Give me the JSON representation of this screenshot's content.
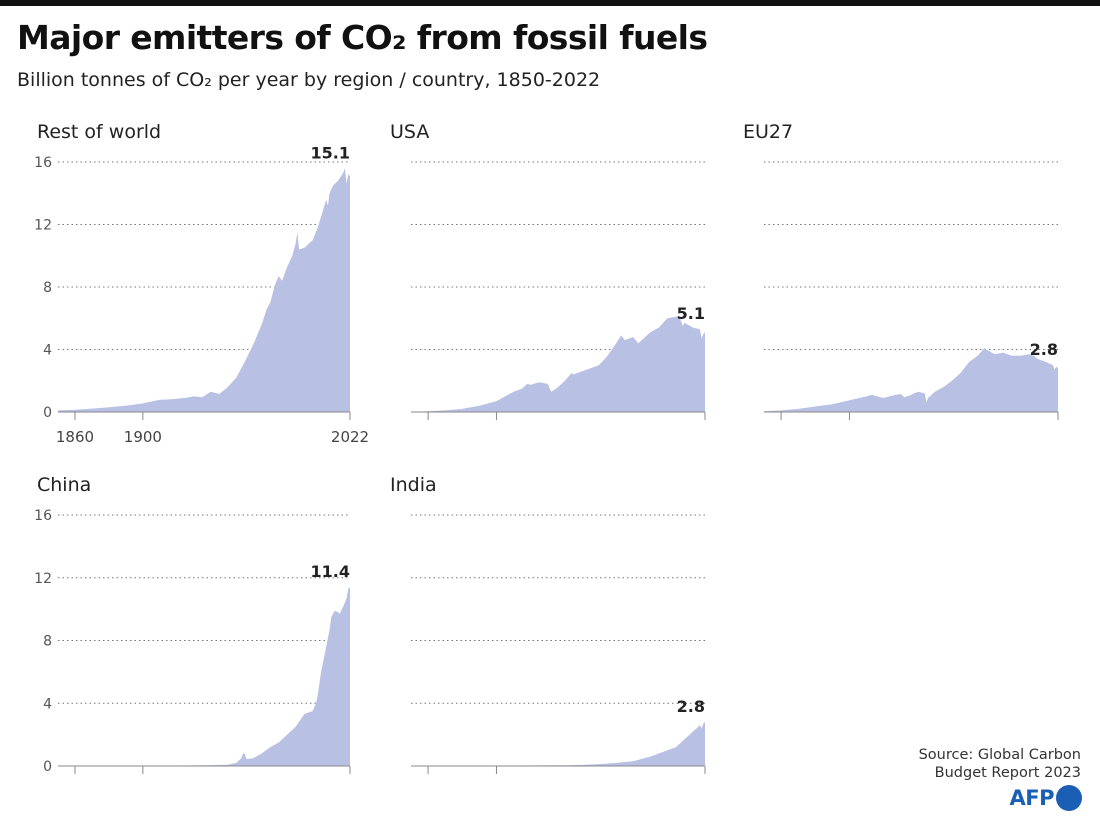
{
  "title": "Major emitters of CO₂ from fossil fuels",
  "subtitle": "Billion tonnes of CO₂ per year by region / country, 1850-2022",
  "source_line1": "Source: Global Carbon",
  "source_line2": "Budget Report 2023",
  "logo": "AFP",
  "colors": {
    "area": "#b8c0e3",
    "text": "#1a1a1a",
    "logo": "#1a5fb4"
  },
  "chart_data": [
    {
      "type": "area",
      "title": "Rest of world",
      "x": [
        1850,
        1860,
        1870,
        1880,
        1890,
        1900,
        1910,
        1915,
        1920,
        1925,
        1930,
        1935,
        1940,
        1945,
        1950,
        1955,
        1960,
        1965,
        1970,
        1973,
        1975,
        1978,
        1980,
        1982,
        1985,
        1988,
        1990,
        1991,
        1992,
        1995,
        2000,
        2003,
        2005,
        2008,
        2009,
        2010,
        2012,
        2015,
        2018,
        2019,
        2020,
        2021,
        2022
      ],
      "values": [
        0.1,
        0.15,
        0.22,
        0.3,
        0.4,
        0.55,
        0.78,
        0.8,
        0.85,
        0.9,
        1.0,
        0.95,
        1.3,
        1.15,
        1.6,
        2.2,
        3.2,
        4.3,
        5.6,
        6.6,
        7.0,
        8.2,
        8.7,
        8.4,
        9.3,
        10.0,
        10.8,
        11.5,
        10.4,
        10.5,
        11.0,
        11.8,
        12.5,
        13.6,
        13.2,
        14.0,
        14.5,
        14.8,
        15.3,
        15.6,
        14.6,
        15.2,
        15.1
      ],
      "label_value": "15.1",
      "y_ticks": [
        "16",
        "12",
        "8",
        "4",
        "0"
      ],
      "x_tick_labels": [
        "1860",
        "1900",
        "2022"
      ],
      "ylim": [
        0,
        16
      ]
    },
    {
      "type": "area",
      "title": "USA",
      "x": [
        1850,
        1860,
        1870,
        1880,
        1890,
        1900,
        1905,
        1910,
        1915,
        1918,
        1920,
        1925,
        1930,
        1932,
        1935,
        1940,
        1944,
        1945,
        1950,
        1955,
        1960,
        1965,
        1970,
        1973,
        1975,
        1980,
        1983,
        1985,
        1990,
        1995,
        2000,
        2005,
        2007,
        2009,
        2010,
        2015,
        2019,
        2020,
        2021,
        2022
      ],
      "values": [
        0.01,
        0.05,
        0.1,
        0.2,
        0.4,
        0.7,
        1.0,
        1.3,
        1.5,
        1.8,
        1.75,
        1.9,
        1.8,
        1.3,
        1.5,
        2.0,
        2.5,
        2.4,
        2.6,
        2.8,
        3.0,
        3.6,
        4.4,
        4.9,
        4.6,
        4.8,
        4.4,
        4.6,
        5.1,
        5.4,
        6.0,
        6.1,
        6.1,
        5.5,
        5.7,
        5.4,
        5.3,
        4.7,
        5.0,
        5.1
      ],
      "label_value": "5.1",
      "y_ticks": [
        "16",
        "12",
        "8",
        "4",
        "0"
      ],
      "x_tick_labels": [],
      "ylim": [
        0,
        16
      ]
    },
    {
      "type": "area",
      "title": "EU27",
      "x": [
        1850,
        1860,
        1870,
        1880,
        1890,
        1900,
        1910,
        1913,
        1918,
        1920,
        1925,
        1930,
        1932,
        1935,
        1940,
        1944,
        1945,
        1946,
        1950,
        1955,
        1960,
        1965,
        1970,
        1975,
        1979,
        1980,
        1985,
        1990,
        1995,
        2000,
        2005,
        2008,
        2010,
        2015,
        2019,
        2020,
        2021,
        2022
      ],
      "values": [
        0.05,
        0.1,
        0.2,
        0.35,
        0.5,
        0.75,
        1.0,
        1.1,
        0.95,
        0.9,
        1.05,
        1.15,
        0.95,
        1.05,
        1.3,
        1.2,
        0.6,
        0.9,
        1.3,
        1.6,
        2.0,
        2.5,
        3.2,
        3.6,
        4.1,
        4.0,
        3.7,
        3.8,
        3.6,
        3.6,
        3.7,
        3.6,
        3.4,
        3.2,
        3.0,
        2.7,
        2.9,
        2.8
      ],
      "label_value": "2.8",
      "y_ticks": [
        "16",
        "12",
        "8",
        "4",
        "0"
      ],
      "x_tick_labels": [],
      "ylim": [
        0,
        16
      ]
    },
    {
      "type": "area",
      "title": "China",
      "x": [
        1850,
        1900,
        1920,
        1930,
        1940,
        1950,
        1955,
        1958,
        1959,
        1960,
        1961,
        1962,
        1965,
        1970,
        1975,
        1980,
        1985,
        1990,
        1995,
        1997,
        2000,
        2002,
        2003,
        2005,
        2008,
        2010,
        2011,
        2013,
        2015,
        2016,
        2019,
        2020,
        2021,
        2022
      ],
      "values": [
        0.0,
        0.01,
        0.03,
        0.04,
        0.06,
        0.08,
        0.2,
        0.5,
        0.8,
        0.8,
        0.45,
        0.45,
        0.5,
        0.8,
        1.2,
        1.5,
        2.0,
        2.5,
        3.3,
        3.4,
        3.5,
        4.0,
        4.5,
        6.0,
        7.6,
        8.7,
        9.5,
        9.9,
        9.8,
        9.7,
        10.4,
        10.7,
        11.3,
        11.4
      ],
      "label_value": "11.4",
      "y_ticks": [
        "16",
        "12",
        "8",
        "4",
        "0"
      ],
      "x_tick_labels": [],
      "ylim": [
        0,
        16
      ]
    },
    {
      "type": "area",
      "title": "India",
      "x": [
        1850,
        1900,
        1920,
        1940,
        1950,
        1960,
        1970,
        1980,
        1990,
        2000,
        2005,
        2010,
        2015,
        2019,
        2020,
        2021,
        2022
      ],
      "values": [
        0.0,
        0.02,
        0.04,
        0.05,
        0.07,
        0.12,
        0.2,
        0.3,
        0.6,
        1.0,
        1.2,
        1.7,
        2.2,
        2.6,
        2.4,
        2.7,
        2.8
      ],
      "label_value": "2.8",
      "y_ticks": [
        "16",
        "12",
        "8",
        "4",
        "0"
      ],
      "x_tick_labels": [],
      "ylim": [
        0,
        16
      ]
    }
  ]
}
